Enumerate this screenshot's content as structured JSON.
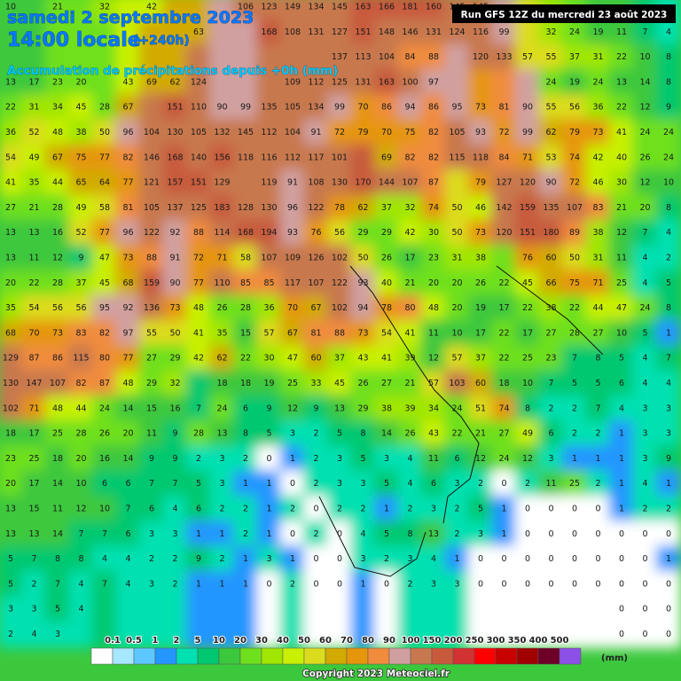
{
  "header": {
    "date": "samedi 2 septembre 2023",
    "time": "14:00 locale",
    "offset": "(+240h)",
    "subtitle": "Accumulation de précipitations depuis +0h (mm)",
    "run": "Run GFS 12Z du mercredi 23 août 2023"
  },
  "legend": {
    "unit": "(mm)",
    "thresholds": [
      0.1,
      0.5,
      1,
      2,
      5,
      10,
      20,
      30,
      40,
      50,
      60,
      70,
      80,
      90,
      100,
      150,
      200,
      250,
      300,
      350,
      400,
      500
    ],
    "colors": [
      "#ffffff",
      "#a6e8ff",
      "#5cc8ff",
      "#2496ff",
      "#00e0b0",
      "#00c870",
      "#3cc83c",
      "#6ee01e",
      "#a0e600",
      "#c8f000",
      "#dcdc1e",
      "#d2aa00",
      "#e6960a",
      "#f08c3c",
      "#d0a0a0",
      "#c8784e",
      "#c85a3c",
      "#d23232",
      "#ff0000",
      "#c80000",
      "#a00000",
      "#6e0028",
      "#8c50e6"
    ]
  },
  "grid": {
    "rows": [
      [
        10,
        null,
        21,
        null,
        32,
        null,
        42,
        null,
        null,
        null,
        106,
        123,
        149,
        134,
        145,
        163,
        166,
        181,
        160,
        145,
        145,
        null,
        null,
        null,
        null,
        null,
        null,
        null,
        null
      ],
      [
        null,
        null,
        null,
        null,
        null,
        null,
        null,
        null,
        63,
        null,
        null,
        168,
        108,
        131,
        127,
        151,
        148,
        146,
        131,
        124,
        116,
        99,
        null,
        32,
        24,
        19,
        11,
        7,
        4
      ],
      [
        null,
        null,
        null,
        null,
        null,
        null,
        null,
        null,
        null,
        null,
        null,
        null,
        null,
        null,
        137,
        113,
        104,
        84,
        88,
        null,
        120,
        133,
        57,
        55,
        37,
        31,
        22,
        10,
        8
      ],
      [
        13,
        17,
        23,
        20,
        null,
        43,
        69,
        62,
        124,
        null,
        null,
        null,
        109,
        112,
        125,
        131,
        163,
        100,
        97,
        null,
        null,
        null,
        null,
        24,
        19,
        24,
        13,
        14,
        8
      ],
      [
        22,
        31,
        34,
        45,
        28,
        67,
        null,
        151,
        110,
        90,
        99,
        135,
        105,
        134,
        99,
        70,
        86,
        94,
        86,
        95,
        73,
        81,
        90,
        55,
        56,
        36,
        22,
        12,
        9
      ],
      [
        36,
        52,
        48,
        38,
        50,
        96,
        104,
        130,
        105,
        132,
        145,
        112,
        104,
        91,
        72,
        79,
        70,
        75,
        82,
        105,
        93,
        72,
        99,
        62,
        79,
        73,
        41,
        24,
        24
      ],
      [
        54,
        49,
        67,
        75,
        77,
        82,
        146,
        168,
        140,
        156,
        118,
        116,
        112,
        117,
        101,
        null,
        69,
        82,
        82,
        115,
        118,
        84,
        71,
        53,
        74,
        42,
        40,
        26,
        24
      ],
      [
        41,
        35,
        44,
        65,
        64,
        77,
        121,
        157,
        151,
        129,
        null,
        119,
        91,
        108,
        130,
        170,
        144,
        107,
        87,
        null,
        79,
        127,
        120,
        90,
        72,
        46,
        30,
        12,
        10
      ],
      [
        27,
        21,
        28,
        49,
        58,
        81,
        105,
        137,
        125,
        183,
        128,
        130,
        96,
        122,
        78,
        62,
        37,
        32,
        74,
        50,
        46,
        142,
        159,
        135,
        107,
        83,
        21,
        20,
        8
      ],
      [
        13,
        13,
        16,
        52,
        77,
        96,
        122,
        92,
        88,
        114,
        168,
        194,
        93,
        76,
        56,
        29,
        29,
        42,
        30,
        50,
        73,
        120,
        151,
        180,
        89,
        38,
        12,
        7,
        4
      ],
      [
        13,
        11,
        12,
        9,
        47,
        73,
        88,
        91,
        72,
        71,
        58,
        107,
        109,
        126,
        102,
        50,
        26,
        17,
        23,
        31,
        38,
        null,
        76,
        60,
        50,
        31,
        11,
        4,
        2
      ],
      [
        20,
        22,
        28,
        37,
        45,
        68,
        159,
        90,
        77,
        110,
        85,
        85,
        117,
        107,
        122,
        93,
        40,
        21,
        20,
        20,
        26,
        22,
        45,
        66,
        75,
        71,
        25,
        4,
        5
      ],
      [
        35,
        54,
        56,
        56,
        95,
        92,
        136,
        73,
        48,
        26,
        28,
        36,
        70,
        67,
        102,
        94,
        78,
        80,
        48,
        20,
        19,
        17,
        22,
        38,
        22,
        44,
        47,
        24,
        8
      ],
      [
        68,
        70,
        73,
        83,
        82,
        97,
        55,
        50,
        41,
        35,
        15,
        57,
        67,
        81,
        88,
        73,
        54,
        41,
        11,
        10,
        17,
        22,
        17,
        27,
        28,
        27,
        10,
        5,
        1
      ],
      [
        129,
        87,
        86,
        115,
        80,
        77,
        27,
        29,
        42,
        62,
        22,
        30,
        47,
        60,
        37,
        43,
        41,
        39,
        12,
        57,
        37,
        22,
        25,
        23,
        7,
        8,
        5,
        4,
        7
      ],
      [
        130,
        147,
        107,
        82,
        87,
        48,
        29,
        32,
        null,
        18,
        18,
        19,
        25,
        33,
        45,
        26,
        27,
        21,
        57,
        103,
        60,
        18,
        10,
        7,
        5,
        5,
        6,
        4,
        4
      ],
      [
        102,
        71,
        48,
        44,
        24,
        14,
        15,
        16,
        7,
        24,
        6,
        9,
        12,
        9,
        13,
        29,
        38,
        39,
        34,
        24,
        51,
        74,
        8,
        2,
        2,
        7,
        4,
        3,
        3
      ],
      [
        18,
        17,
        25,
        28,
        26,
        20,
        11,
        9,
        28,
        13,
        8,
        5,
        3,
        2,
        5,
        8,
        14,
        26,
        43,
        22,
        21,
        27,
        49,
        6,
        2,
        2,
        1,
        3,
        3
      ],
      [
        23,
        25,
        18,
        20,
        16,
        14,
        9,
        9,
        2,
        3,
        2,
        0,
        1,
        2,
        3,
        5,
        3,
        4,
        11,
        6,
        12,
        24,
        12,
        3,
        1,
        1,
        1,
        3,
        9
      ],
      [
        20,
        17,
        14,
        10,
        6,
        6,
        7,
        7,
        5,
        3,
        1,
        1,
        0,
        2,
        3,
        3,
        5,
        4,
        6,
        3,
        2,
        0,
        2,
        11,
        25,
        2,
        1,
        4,
        1
      ],
      [
        13,
        15,
        11,
        12,
        10,
        7,
        6,
        4,
        6,
        2,
        2,
        1,
        2,
        0,
        2,
        2,
        1,
        2,
        3,
        2,
        5,
        1,
        0,
        0,
        0,
        0,
        1,
        2,
        2
      ],
      [
        13,
        13,
        14,
        7,
        7,
        6,
        3,
        3,
        1,
        1,
        2,
        1,
        0,
        2,
        0,
        4,
        5,
        8,
        13,
        2,
        3,
        1,
        0,
        0,
        0,
        0,
        0,
        0,
        0
      ],
      [
        5,
        7,
        8,
        8,
        4,
        4,
        2,
        2,
        9,
        2,
        1,
        3,
        1,
        0,
        0,
        3,
        2,
        3,
        4,
        1,
        0,
        0,
        0,
        0,
        0,
        0,
        0,
        0,
        1
      ],
      [
        5,
        2,
        7,
        4,
        7,
        4,
        3,
        2,
        1,
        1,
        1,
        0,
        2,
        0,
        0,
        1,
        0,
        2,
        3,
        3,
        0,
        0,
        0,
        0,
        0,
        0,
        0,
        0,
        0
      ],
      [
        3,
        3,
        5,
        4,
        null,
        null,
        null,
        null,
        null,
        null,
        null,
        null,
        null,
        null,
        null,
        null,
        null,
        null,
        null,
        null,
        null,
        null,
        null,
        null,
        null,
        null,
        0,
        0,
        0
      ],
      [
        2,
        4,
        3,
        null,
        null,
        null,
        null,
        null,
        null,
        null,
        null,
        null,
        null,
        null,
        null,
        null,
        null,
        null,
        null,
        null,
        null,
        null,
        null,
        null,
        null,
        null,
        0,
        0,
        0
      ]
    ]
  },
  "footer": {
    "copyright": "Copyright 2023 Meteociel.fr"
  }
}
